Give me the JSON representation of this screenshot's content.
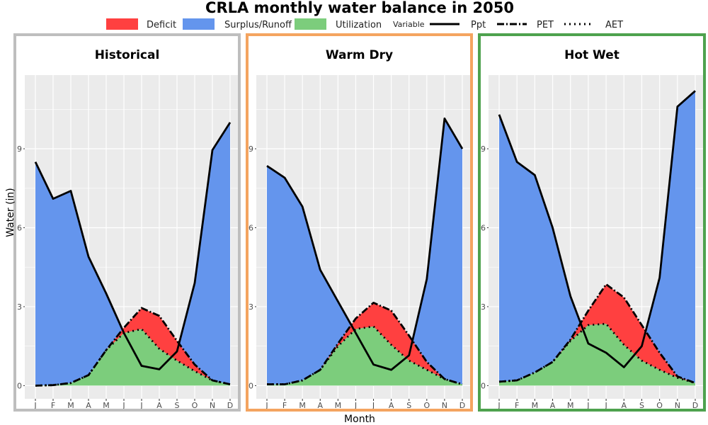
{
  "chart_data": {
    "type": "area",
    "title": "CRLA monthly water balance in 2050",
    "xlabel": "Month",
    "ylabel": "Water (in)",
    "ylim": [
      -0.5,
      11.8
    ],
    "yticks": [
      0,
      3,
      6,
      9
    ],
    "categories": [
      "J",
      "F",
      "M",
      "A",
      "M",
      "J",
      "J",
      "A",
      "S",
      "O",
      "N",
      "D"
    ],
    "legend": {
      "fills": [
        {
          "label": "Deficit",
          "color": "#ff4040"
        },
        {
          "label": "Surplus/Runoff",
          "color": "#6495ed"
        },
        {
          "label": "Utilization",
          "color": "#7ccd7c"
        }
      ],
      "variable_title": "Variable",
      "lines": [
        {
          "label": "Ppt",
          "dash": "solid"
        },
        {
          "label": "PET",
          "dash": "dashdot"
        },
        {
          "label": "AET",
          "dash": "dotted"
        }
      ]
    },
    "panels": [
      {
        "name": "Historical",
        "border_color": "#bebebe",
        "series": [
          {
            "name": "Ppt",
            "values": [
              8.5,
              7.1,
              7.4,
              4.9,
              3.5,
              2.0,
              0.75,
              0.62,
              1.3,
              3.9,
              8.95,
              10.0
            ]
          },
          {
            "name": "PET",
            "values": [
              0.0,
              0.02,
              0.1,
              0.4,
              1.35,
              2.2,
              2.95,
              2.65,
              1.7,
              0.8,
              0.2,
              0.05
            ]
          },
          {
            "name": "AET",
            "values": [
              0.0,
              0.02,
              0.1,
              0.4,
              1.35,
              2.0,
              2.15,
              1.4,
              0.95,
              0.55,
              0.2,
              0.05
            ]
          }
        ]
      },
      {
        "name": "Warm Dry",
        "border_color": "#f4a460",
        "series": [
          {
            "name": "Ppt",
            "values": [
              8.35,
              7.9,
              6.8,
              4.4,
              3.2,
              2.0,
              0.8,
              0.6,
              1.15,
              4.05,
              10.15,
              9.0
            ]
          },
          {
            "name": "PET",
            "values": [
              0.05,
              0.05,
              0.2,
              0.6,
              1.6,
              2.55,
              3.15,
              2.85,
              1.9,
              0.9,
              0.25,
              0.05
            ]
          },
          {
            "name": "AET",
            "values": [
              0.05,
              0.05,
              0.2,
              0.6,
              1.5,
              2.15,
              2.25,
              1.55,
              0.95,
              0.6,
              0.25,
              0.05
            ]
          }
        ]
      },
      {
        "name": "Hot Wet",
        "border_color": "#4ea24e",
        "series": [
          {
            "name": "Ppt",
            "values": [
              10.3,
              8.5,
              8.0,
              6.0,
              3.4,
              1.6,
              1.25,
              0.7,
              1.5,
              4.1,
              10.6,
              11.2
            ]
          },
          {
            "name": "PET",
            "values": [
              0.15,
              0.2,
              0.5,
              0.9,
              1.75,
              2.85,
              3.85,
              3.35,
              2.3,
              1.25,
              0.35,
              0.1
            ]
          },
          {
            "name": "AET",
            "values": [
              0.15,
              0.2,
              0.5,
              0.9,
              1.7,
              2.3,
              2.35,
              1.55,
              0.95,
              0.6,
              0.3,
              0.1
            ]
          }
        ]
      }
    ]
  }
}
